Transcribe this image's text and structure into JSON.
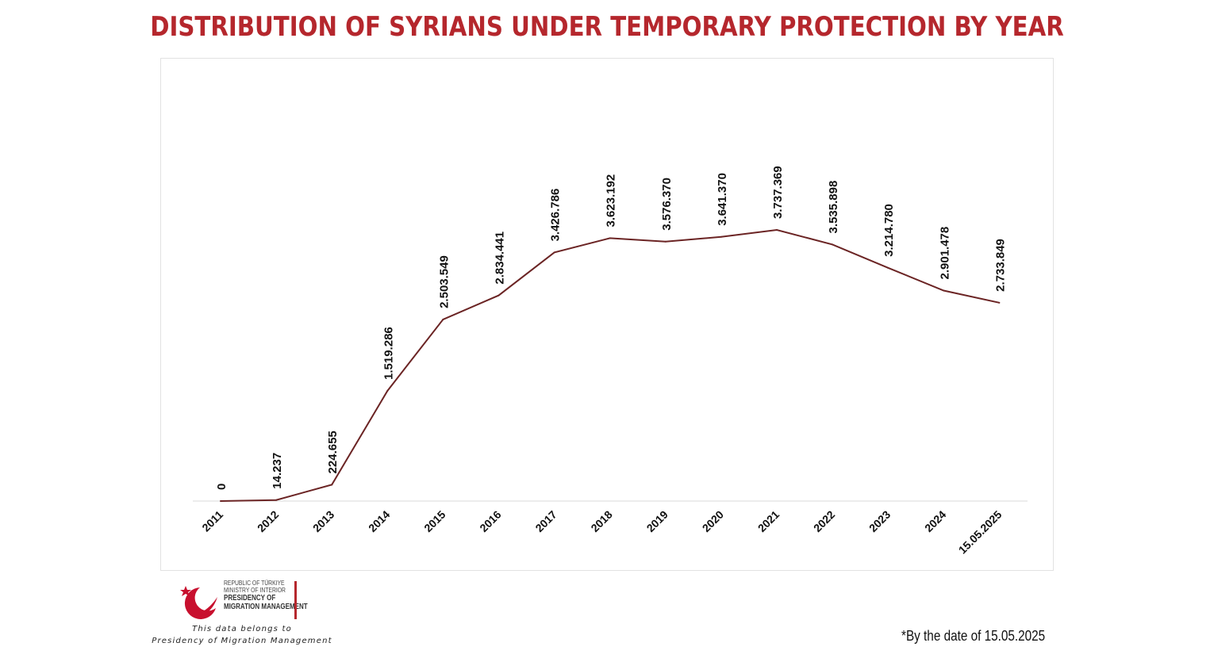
{
  "page": {
    "title": "DISTRIBUTION OF SYRIANS UNDER TEMPORARY PROTECTION BY YEAR",
    "logo": {
      "line1": "REPUBLIC OF TÜRKIYE",
      "line2": "MINISTRY OF INTERIOR",
      "line3": "PRESIDENCY OF",
      "line4": "MIGRATION MANAGEMENT",
      "icon": "crescent-star-bird-emblem"
    },
    "source_note": {
      "line1": "This data belongs to",
      "line2": "Presidency of Migration Management"
    },
    "date_note": "*By the date of  15.05.2025"
  },
  "colors": {
    "title": "#b5272d",
    "line": "#6b2424",
    "axis": "#d9d9d9",
    "text": "#111111"
  },
  "chart_data": {
    "type": "line",
    "title": "DISTRIBUTION OF SYRIANS UNDER TEMPORARY PROTECTION BY YEAR",
    "categories": [
      "2011",
      "2012",
      "2013",
      "2014",
      "2015",
      "2016",
      "2017",
      "2018",
      "2019",
      "2020",
      "2021",
      "2022",
      "2023",
      "2024",
      "15.05.2025"
    ],
    "values": [
      0,
      14237,
      224655,
      1519286,
      2503549,
      2834441,
      3426786,
      3623192,
      3576370,
      3641370,
      3737369,
      3535898,
      3214780,
      2901478,
      2733849
    ],
    "data_labels": [
      "0",
      "14.237",
      "224.655",
      "1.519.286",
      "2.503.549",
      "2.834.441",
      "3.426.786",
      "3.623.192",
      "3.576.370",
      "3.641.370",
      "3.737.369",
      "3.535.898",
      "3.214.780",
      "2.901.478",
      "2.733.849"
    ],
    "xlabel": "",
    "ylabel": "",
    "ylim": [
      0,
      5500000
    ],
    "grid": false,
    "legend": "none"
  }
}
